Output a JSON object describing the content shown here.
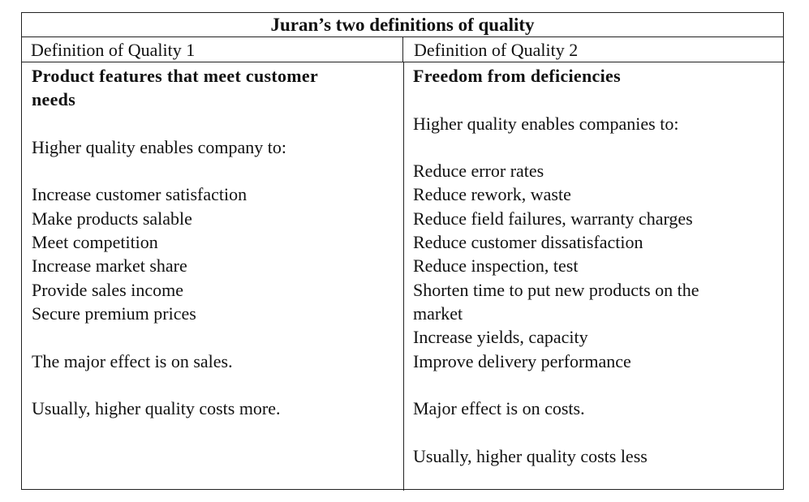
{
  "title": "Juran’s two definitions of quality",
  "col1": {
    "header": "Definition of Quality 1",
    "heading_line1": "Product features that meet customer",
    "heading_line2": "needs",
    "intro": "Higher quality enables company to:",
    "items": [
      "Increase customer satisfaction",
      "Make products salable",
      "Meet competition",
      "Increase market share",
      "Provide sales income",
      "Secure premium prices"
    ],
    "effect": "The major effect is on sales.",
    "cost": "Usually, higher quality costs more."
  },
  "col2": {
    "header": "Definition of Quality 2",
    "heading": "Freedom from deficiencies",
    "intro": "Higher quality enables companies to:",
    "items": [
      "Reduce error rates",
      "Reduce rework, waste",
      "Reduce field failures, warranty charges",
      "Reduce customer dissatisfaction",
      "Reduce inspection, test",
      "Shorten time to put new products on the",
      "market",
      "Increase yields, capacity",
      "Improve delivery performance"
    ],
    "effect": "Major effect is on costs.",
    "cost": "Usually, higher quality costs less"
  }
}
